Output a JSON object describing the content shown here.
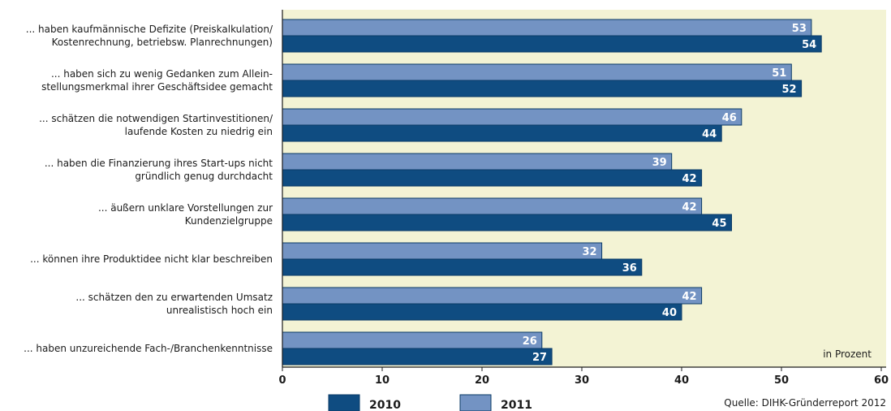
{
  "chart_data": {
    "type": "bar",
    "orientation": "horizontal",
    "categories": [
      [
        "... haben kaufmännische Defizite (Preiskalkulation/",
        "Kostenrechnung, betriebsw. Planrechnungen)"
      ],
      [
        "... haben sich zu wenig Gedanken zum Allein-",
        "stellungsmerkmal ihrer Geschäftsidee gemacht"
      ],
      [
        "... schätzen die notwendigen Startinvestitionen/",
        "laufende Kosten zu niedrig ein"
      ],
      [
        "... haben die Finanzierung ihres Start-ups nicht",
        "gründlich genug durchdacht"
      ],
      [
        "... äußern unklare Vorstellungen zur",
        "Kundenzielgruppe"
      ],
      [
        "... können ihre Produktidee nicht klar beschreiben"
      ],
      [
        "... schätzen den zu erwartenden Umsatz",
        "unrealistisch hoch ein"
      ],
      [
        "... haben unzureichende Fach-/Branchenkenntnisse"
      ]
    ],
    "series": [
      {
        "name": "2011",
        "color": "#7393c3",
        "values": [
          53,
          51,
          46,
          39,
          42,
          32,
          42,
          26
        ]
      },
      {
        "name": "2010",
        "color": "#0f4c81",
        "values": [
          54,
          52,
          44,
          42,
          45,
          36,
          40,
          27
        ]
      }
    ],
    "xlim": [
      0,
      60
    ],
    "xticks": [
      0,
      10,
      20,
      30,
      40,
      50,
      60
    ],
    "unit_note": "in Prozent",
    "legend": {
      "position": "bottom",
      "order": [
        "2010",
        "2011"
      ]
    },
    "grid": false,
    "plot_background": "#f3f3d4",
    "source": "Quelle: DIHK-Gründerreport 2012"
  }
}
